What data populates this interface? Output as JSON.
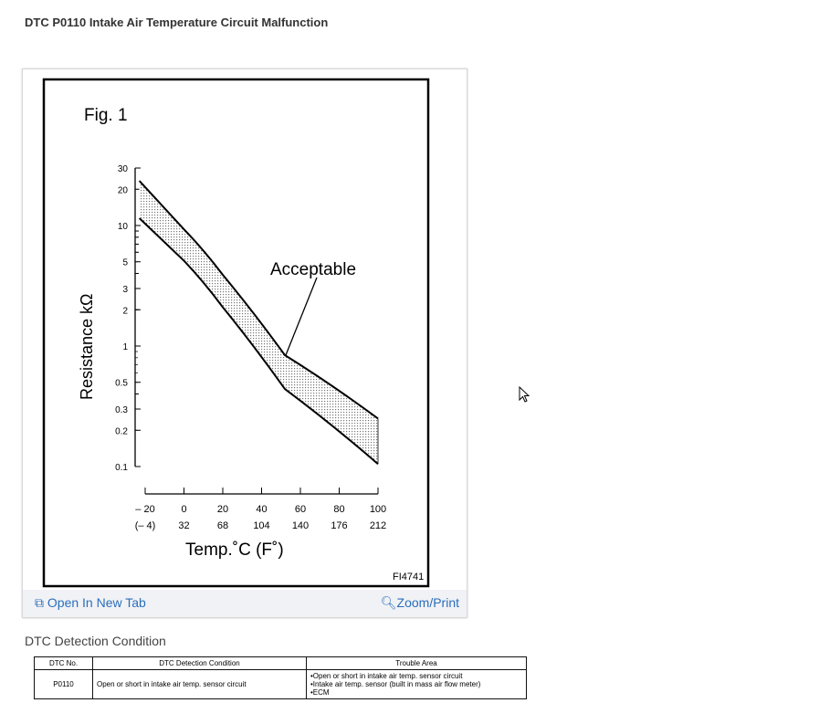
{
  "page_title": "DTC P0110 Intake Air Temperature Circuit Malfunction",
  "figure": {
    "fig_label": "Fig. 1",
    "figure_code": "FI4741",
    "callout": "Acceptable",
    "open_new_tab": "Open In New Tab",
    "zoom_print": "Zoom/Print",
    "link_color": "#2a6ebb"
  },
  "chart_data": {
    "type": "area",
    "ylabel": "Resistance kΩ",
    "xlabel": "Temp.˚C (F˚)",
    "yscale": "log",
    "ylim": [
      0.1,
      30
    ],
    "xlim": [
      -20,
      100
    ],
    "y_ticks": [
      "30",
      "20",
      "10",
      "5",
      "3",
      "2",
      "1",
      "0.5",
      "0.3",
      "0.2",
      "0.1"
    ],
    "y_tick_values": [
      30,
      20,
      10,
      5,
      3,
      2,
      1,
      0.5,
      0.3,
      0.2,
      0.1
    ],
    "x_ticks_c": [
      "– 20",
      "0",
      "20",
      "40",
      "60",
      "80",
      "100"
    ],
    "x_tick_values": [
      -20,
      0,
      20,
      40,
      60,
      80,
      100
    ],
    "x_ticks_f": [
      "(– 4)",
      "32",
      "68",
      "104",
      "140",
      "176",
      "212"
    ],
    "series": [
      {
        "name": "upper",
        "x": [
          -23,
          0,
          20,
          52,
          100
        ],
        "y": [
          23.5,
          9.3,
          3.9,
          0.84,
          0.25
        ]
      },
      {
        "name": "lower",
        "x": [
          -23,
          0,
          20,
          52,
          100
        ],
        "y": [
          11.5,
          5.1,
          2.1,
          0.44,
          0.105
        ]
      }
    ]
  },
  "section_heading": "DTC Detection Condition",
  "table": {
    "headers": [
      "DTC No.",
      "DTC Detection Condition",
      "Trouble Area"
    ],
    "rows": [
      {
        "dtc": "P0110",
        "condition": "Open or short in intake air temp. sensor circuit",
        "trouble": [
          "•Open or short in intake air temp. sensor circuit",
          "•Intake air temp. sensor (built in mass air flow meter)",
          "•ECM"
        ]
      }
    ]
  }
}
